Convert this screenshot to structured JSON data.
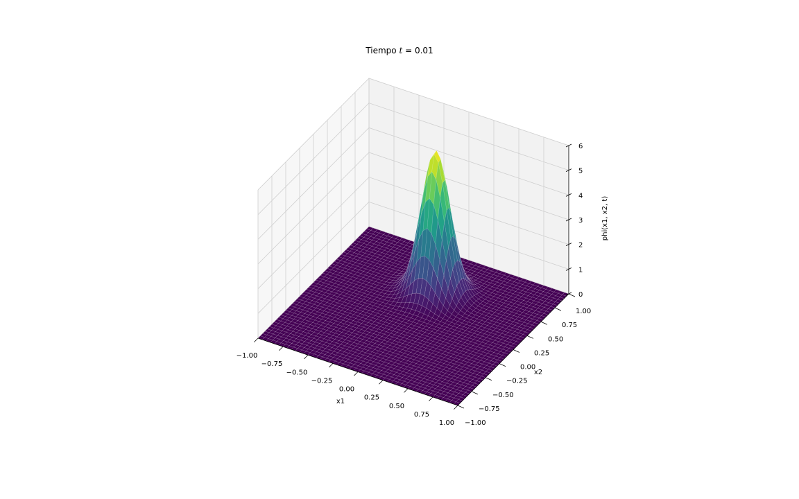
{
  "chart_data": {
    "type": "surface3d",
    "title": {
      "prefix": "Tiempo ",
      "variable": "t",
      "operator": " = ",
      "value": "0.01"
    },
    "xlabel": "x1",
    "ylabel": "x2",
    "zlabel": "phi(x1, x2, t)",
    "xlim": [
      -1,
      1
    ],
    "ylim": [
      -1,
      1
    ],
    "zlim": [
      0,
      6
    ],
    "x_ticks": [
      "−1.00",
      "−0.75",
      "−0.50",
      "−0.25",
      "0.00",
      "0.25",
      "0.50",
      "0.75",
      "1.00"
    ],
    "y_ticks": [
      "−1.00",
      "−0.75",
      "−0.50",
      "−0.25",
      "0.00",
      "0.25",
      "0.50",
      "0.75",
      "1.00"
    ],
    "z_ticks": [
      "0",
      "1",
      "2",
      "3",
      "4",
      "5",
      "6"
    ],
    "grid": true,
    "colormap": "viridis",
    "surface": {
      "shape": "gaussian",
      "peak": 5.8,
      "center": [
        0,
        0.4
      ],
      "sigma": [
        0.13,
        0.13
      ]
    }
  }
}
